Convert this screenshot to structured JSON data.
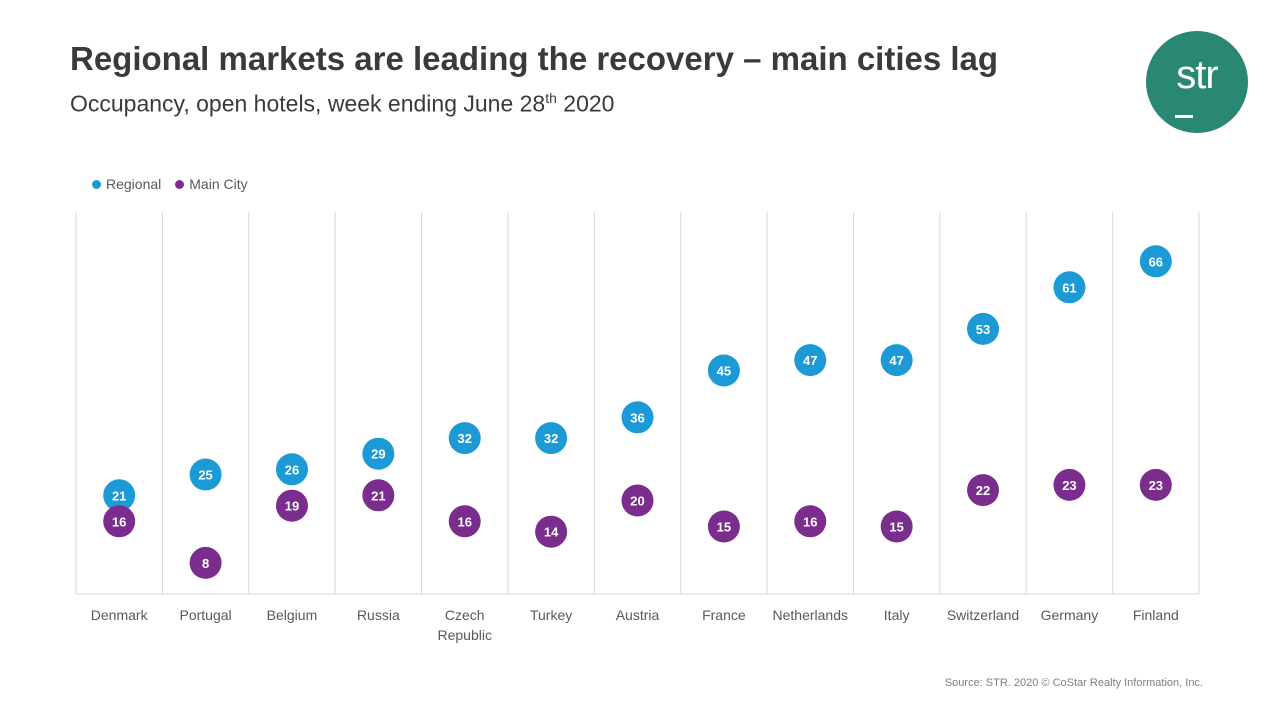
{
  "header": {
    "title": "Regional markets are leading the recovery – main cities lag",
    "subtitle_main": "Occupancy, open hotels, week ending June 28",
    "subtitle_sup": "th",
    "subtitle_end": " 2020"
  },
  "logo": {
    "text": "str"
  },
  "source": "Source: STR. 2020 © CoStar Realty Information, Inc.",
  "colors": {
    "regional": "#1b9ad6",
    "main_city": "#7b2d8e",
    "grid": "#d9d9d9",
    "axis_text": "#595959"
  },
  "chart_data": {
    "type": "scatter",
    "title": "Regional markets are leading the recovery – main cities lag",
    "subtitle": "Occupancy, open hotels, week ending June 28th 2020",
    "categories": [
      "Denmark",
      "Portugal",
      "Belgium",
      "Russia",
      "Czech Republic",
      "Turkey",
      "Austria",
      "France",
      "Netherlands",
      "Italy",
      "Switzerland",
      "Germany",
      "Finland"
    ],
    "category_lines": [
      [
        "Denmark"
      ],
      [
        "Portugal"
      ],
      [
        "Belgium"
      ],
      [
        "Russia"
      ],
      [
        "Czech",
        "Republic"
      ],
      [
        "Turkey"
      ],
      [
        "Austria"
      ],
      [
        "France"
      ],
      [
        "Netherlands"
      ],
      [
        "Italy"
      ],
      [
        "Switzerland"
      ],
      [
        "Germany"
      ],
      [
        "Finland"
      ]
    ],
    "series": [
      {
        "name": "Regional",
        "values": [
          21,
          25,
          26,
          29,
          32,
          32,
          36,
          45,
          47,
          47,
          53,
          61,
          66
        ]
      },
      {
        "name": "Main City",
        "values": [
          16,
          8,
          19,
          21,
          16,
          14,
          20,
          15,
          16,
          15,
          22,
          23,
          23
        ]
      }
    ],
    "ylim": [
      0,
      70
    ],
    "legend": "top-left",
    "data_labels": true
  }
}
